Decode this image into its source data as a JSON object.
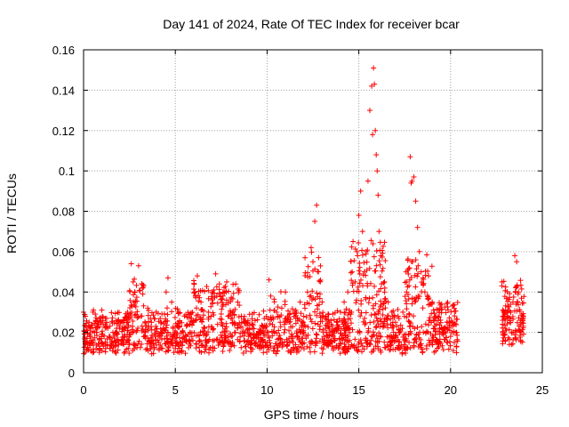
{
  "chart_data": {
    "type": "scatter",
    "title": "Day 141 of 2024, Rate Of TEC Index for receiver bcar",
    "xlabel": "GPS time / hours",
    "ylabel": "ROTI / TECUs",
    "xlim": [
      0,
      25
    ],
    "ylim": [
      0,
      0.16
    ],
    "xticks": [
      "0",
      "5",
      "10",
      "15",
      "20",
      "25"
    ],
    "xtick_values": [
      0,
      5,
      10,
      15,
      20,
      25
    ],
    "yticks": [
      "0",
      "0.02",
      "0.04",
      "0.06",
      "0.08",
      "0.1",
      "0.12",
      "0.14",
      "0.16"
    ],
    "ytick_values": [
      0,
      0.02,
      0.04,
      0.06,
      0.08,
      0.1,
      0.12,
      0.14,
      0.16
    ],
    "grid": true,
    "marker": "+",
    "color": "#ff0000",
    "series": [
      {
        "name": "ROTI",
        "points": [
          [
            0.0,
            0.03
          ],
          [
            0.1,
            0.028
          ],
          [
            0.2,
            0.015
          ],
          [
            0.3,
            0.025
          ],
          [
            0.4,
            0.022
          ],
          [
            0.5,
            0.01
          ],
          [
            0.6,
            0.02
          ],
          [
            0.8,
            0.024
          ],
          [
            1.0,
            0.015
          ],
          [
            1.2,
            0.012
          ],
          [
            1.4,
            0.018
          ],
          [
            1.6,
            0.02
          ],
          [
            1.8,
            0.022
          ],
          [
            2.0,
            0.025
          ],
          [
            2.2,
            0.018
          ],
          [
            2.4,
            0.03
          ],
          [
            2.6,
            0.054
          ],
          [
            2.7,
            0.045
          ],
          [
            2.8,
            0.04
          ],
          [
            3.0,
            0.053
          ],
          [
            3.1,
            0.028
          ],
          [
            3.3,
            0.02
          ],
          [
            3.5,
            0.032
          ],
          [
            3.7,
            0.025
          ],
          [
            3.9,
            0.018
          ],
          [
            4.1,
            0.015
          ],
          [
            4.3,
            0.012
          ],
          [
            4.5,
            0.04
          ],
          [
            4.6,
            0.047
          ],
          [
            4.8,
            0.035
          ],
          [
            5.0,
            0.012
          ],
          [
            5.2,
            0.01
          ],
          [
            5.4,
            0.015
          ],
          [
            5.6,
            0.018
          ],
          [
            5.8,
            0.02
          ],
          [
            6.0,
            0.025
          ],
          [
            6.2,
            0.048
          ],
          [
            6.4,
            0.035
          ],
          [
            6.6,
            0.022
          ],
          [
            6.8,
            0.03
          ],
          [
            7.0,
            0.04
          ],
          [
            7.2,
            0.049
          ],
          [
            7.4,
            0.044
          ],
          [
            7.6,
            0.038
          ],
          [
            7.8,
            0.045
          ],
          [
            8.0,
            0.03
          ],
          [
            8.2,
            0.025
          ],
          [
            8.4,
            0.035
          ],
          [
            8.6,
            0.028
          ],
          [
            8.8,
            0.02
          ],
          [
            9.0,
            0.018
          ],
          [
            9.2,
            0.022
          ],
          [
            9.4,
            0.015
          ],
          [
            9.6,
            0.012
          ],
          [
            9.8,
            0.01
          ],
          [
            10.0,
            0.015
          ],
          [
            10.1,
            0.046
          ],
          [
            10.2,
            0.038
          ],
          [
            10.4,
            0.02
          ],
          [
            10.6,
            0.028
          ],
          [
            10.8,
            0.032
          ],
          [
            11.0,
            0.04
          ],
          [
            11.2,
            0.025
          ],
          [
            11.4,
            0.018
          ],
          [
            11.6,
            0.03
          ],
          [
            11.8,
            0.035
          ],
          [
            12.0,
            0.028
          ],
          [
            12.2,
            0.04
          ],
          [
            12.4,
            0.062
          ],
          [
            12.5,
            0.055
          ],
          [
            12.6,
            0.075
          ],
          [
            12.7,
            0.083
          ],
          [
            12.8,
            0.05
          ],
          [
            13.0,
            0.035
          ],
          [
            13.2,
            0.028
          ],
          [
            13.4,
            0.022
          ],
          [
            13.6,
            0.018
          ],
          [
            13.8,
            0.025
          ],
          [
            14.0,
            0.03
          ],
          [
            14.2,
            0.035
          ],
          [
            14.4,
            0.04
          ],
          [
            14.6,
            0.03
          ],
          [
            14.8,
            0.045
          ],
          [
            14.9,
            0.06
          ],
          [
            15.0,
            0.078
          ],
          [
            15.1,
            0.09
          ],
          [
            15.2,
            0.07
          ],
          [
            15.3,
            0.05
          ],
          [
            15.4,
            0.06
          ],
          [
            15.5,
            0.095
          ],
          [
            15.6,
            0.13
          ],
          [
            15.7,
            0.142
          ],
          [
            15.75,
            0.118
          ],
          [
            15.8,
            0.151
          ],
          [
            15.85,
            0.143
          ],
          [
            15.9,
            0.12
          ],
          [
            15.95,
            0.108
          ],
          [
            16.0,
            0.1
          ],
          [
            16.05,
            0.088
          ],
          [
            16.1,
            0.07
          ],
          [
            16.2,
            0.058
          ],
          [
            16.4,
            0.045
          ],
          [
            16.6,
            0.035
          ],
          [
            16.8,
            0.03
          ],
          [
            17.0,
            0.025
          ],
          [
            17.2,
            0.02
          ],
          [
            17.4,
            0.03
          ],
          [
            17.6,
            0.04
          ],
          [
            17.8,
            0.107
          ],
          [
            17.85,
            0.094
          ],
          [
            17.9,
            0.095
          ],
          [
            18.0,
            0.097
          ],
          [
            18.1,
            0.085
          ],
          [
            18.2,
            0.072
          ],
          [
            18.3,
            0.06
          ],
          [
            18.4,
            0.05
          ],
          [
            18.6,
            0.04
          ],
          [
            18.8,
            0.048
          ],
          [
            19.0,
            0.035
          ],
          [
            19.2,
            0.028
          ],
          [
            19.4,
            0.022
          ],
          [
            19.6,
            0.02
          ],
          [
            19.8,
            0.025
          ],
          [
            20.0,
            0.018
          ],
          [
            20.2,
            0.015
          ],
          [
            20.3,
            0.02
          ],
          [
            22.8,
            0.045
          ],
          [
            22.9,
            0.03
          ],
          [
            23.0,
            0.022
          ],
          [
            23.2,
            0.014
          ],
          [
            23.4,
            0.035
          ],
          [
            23.5,
            0.058
          ],
          [
            23.6,
            0.055
          ],
          [
            23.7,
            0.04
          ],
          [
            23.8,
            0.02
          ],
          [
            23.9,
            0.025
          ]
        ]
      }
    ],
    "density_segments": [
      {
        "t0": 0.0,
        "t1": 20.4,
        "base": 0.012,
        "spread": 0.022
      }
    ],
    "extra_segment": {
      "t0": 22.8,
      "t1": 24.0
    }
  }
}
